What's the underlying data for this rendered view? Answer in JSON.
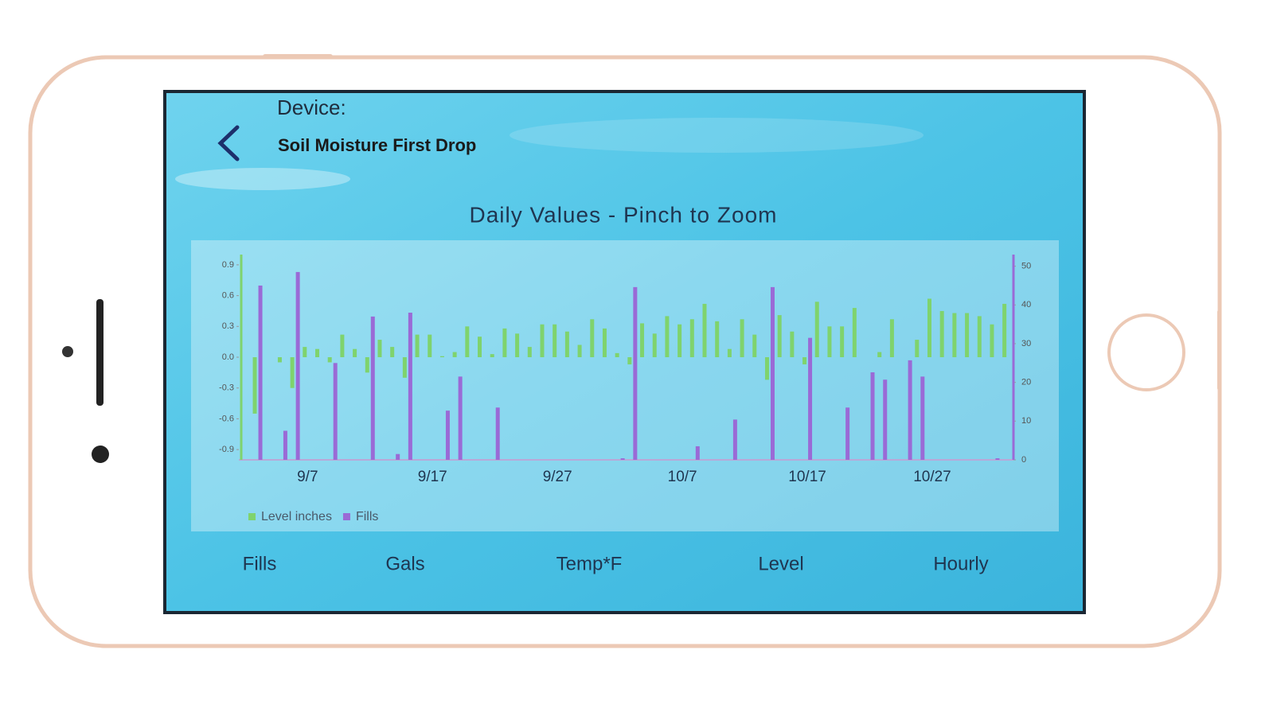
{
  "header": {
    "label": "Device:",
    "device": "Soil Moisture First Drop"
  },
  "chart_data": {
    "type": "bar",
    "title": "Daily Values - Pinch to Zoom",
    "categories": [
      null,
      null,
      null,
      null,
      null,
      "9/7",
      null,
      null,
      null,
      null,
      null,
      null,
      null,
      null,
      null,
      "9/17",
      null,
      null,
      null,
      null,
      null,
      null,
      null,
      null,
      null,
      "9/27",
      null,
      null,
      null,
      null,
      null,
      null,
      null,
      null,
      null,
      "10/7",
      null,
      null,
      null,
      null,
      null,
      null,
      null,
      null,
      null,
      "10/17",
      null,
      null,
      null,
      null,
      null,
      null,
      null,
      null,
      null,
      "10/27",
      null,
      null,
      null,
      null,
      null,
      null
    ],
    "series": [
      {
        "name": "Level inches",
        "color": "#7fd36d",
        "values": [
          0,
          -0.55,
          0,
          -0.05,
          -0.3,
          0.1,
          0.08,
          -0.05,
          0.22,
          0.08,
          -0.15,
          0.17,
          0.1,
          -0.2,
          0.22,
          0.22,
          0.01,
          0.05,
          0.3,
          0.2,
          0.03,
          0.28,
          0.23,
          0.1,
          0.32,
          0.32,
          0.25,
          0.12,
          0.37,
          0.28,
          0.04,
          -0.07,
          0.33,
          0.23,
          0.4,
          0.32,
          0.37,
          0.52,
          0.35,
          0.08,
          0.37,
          0.22,
          -0.22,
          0.41,
          0.25,
          -0.07,
          0.54,
          0.3,
          0.3,
          0.48,
          0,
          0.05,
          0.37,
          0,
          0.17,
          0.57,
          0.45,
          0.43,
          0.43,
          0.4,
          0.32,
          0.52
        ]
      },
      {
        "name": "Fills",
        "color": "#9a6ad6",
        "axis": "y2",
        "values": [
          0,
          45,
          0,
          7.5,
          48.5,
          0,
          0,
          25,
          0,
          0,
          37,
          0,
          1.5,
          38,
          0,
          0,
          12.7,
          21.5,
          0,
          0,
          13.5,
          0,
          0,
          0,
          0,
          0,
          0,
          0,
          0,
          0,
          0.4,
          44.6,
          0,
          0,
          0,
          0,
          3.5,
          0,
          0,
          10.4,
          0,
          0,
          44.6,
          0,
          0,
          31.5,
          0,
          0,
          13.5,
          0,
          22.6,
          20.7,
          0,
          25.7,
          21.5,
          0,
          0,
          0,
          0,
          0,
          0.4,
          0
        ]
      }
    ],
    "ylim": [
      -1,
      1
    ],
    "yticks": [
      0.9,
      0.6,
      0.3,
      {
        "value": 0,
        "label": "0.0"
      },
      -0.3,
      -0.6,
      -0.9
    ],
    "y2lim": [
      0,
      53
    ],
    "y2ticks": [
      0,
      10,
      20,
      30,
      40,
      50
    ],
    "grid": false,
    "legend": "bottom-left"
  },
  "tabs": [
    "Fills",
    "Gals",
    "Temp*F",
    "Level",
    "Hourly"
  ]
}
